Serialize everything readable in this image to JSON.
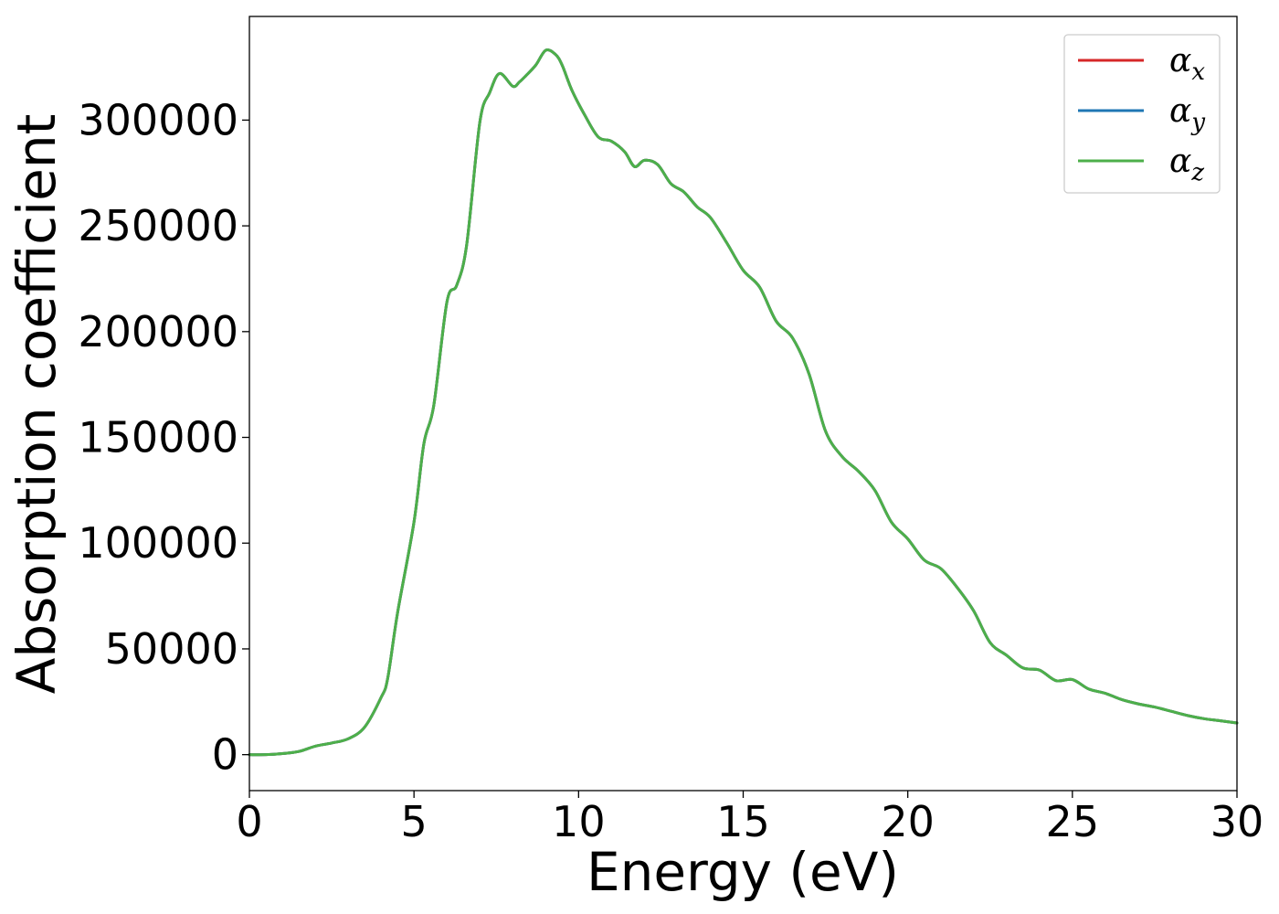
{
  "chart_data": {
    "type": "line",
    "xlabel": "Energy (eV)",
    "ylabel": "Absorption coefficient",
    "xlim": [
      0,
      30
    ],
    "ylim": [
      -17000,
      349000
    ],
    "xticks": [
      0,
      5,
      10,
      15,
      20,
      25,
      30
    ],
    "yticks": [
      0,
      50000,
      100000,
      150000,
      200000,
      250000,
      300000
    ],
    "grid": false,
    "legend_position": "top-right",
    "x": [
      0,
      0.5,
      1.0,
      1.5,
      2.0,
      2.5,
      3.0,
      3.5,
      4.0,
      4.2,
      4.5,
      5.0,
      5.3,
      5.6,
      6.0,
      6.3,
      6.6,
      7.0,
      7.3,
      7.6,
      8.0,
      8.2,
      8.4,
      8.7,
      9.0,
      9.3,
      9.5,
      9.8,
      10.2,
      10.6,
      11.0,
      11.4,
      11.7,
      12.0,
      12.4,
      12.8,
      13.2,
      13.6,
      14.0,
      14.5,
      15.0,
      15.5,
      16.0,
      16.5,
      17.0,
      17.5,
      18.0,
      18.5,
      19.0,
      19.5,
      20.0,
      20.5,
      21.0,
      21.5,
      22.0,
      22.5,
      23.0,
      23.5,
      24.0,
      24.5,
      25.0,
      25.5,
      26.0,
      26.5,
      27.0,
      27.5,
      28.0,
      28.5,
      29.0,
      29.5,
      30.0
    ],
    "series": [
      {
        "name": "α_x",
        "color": "#d62728",
        "values": [
          0,
          0,
          500,
          1500,
          4000,
          5500,
          7500,
          13000,
          27000,
          36000,
          67000,
          110000,
          147000,
          165000,
          214000,
          222000,
          241000,
          299000,
          313000,
          322000,
          316000,
          318000,
          321000,
          326000,
          333000,
          331000,
          326000,
          314000,
          302000,
          292000,
          290000,
          285000,
          278000,
          281000,
          279000,
          270000,
          266000,
          259000,
          254000,
          242000,
          229000,
          221000,
          205000,
          197000,
          180000,
          153000,
          141000,
          134000,
          125000,
          110000,
          102000,
          92000,
          88000,
          79000,
          68000,
          53000,
          47000,
          41000,
          40000,
          35000,
          35500,
          31000,
          29000,
          26000,
          24000,
          22500,
          20500,
          18500,
          17000,
          16000,
          15000
        ]
      },
      {
        "name": "α_y",
        "color": "#1f77b4",
        "values": [
          0,
          0,
          500,
          1500,
          4000,
          5500,
          7500,
          13000,
          27000,
          36000,
          67000,
          110000,
          147000,
          165000,
          214000,
          222000,
          241000,
          299000,
          313000,
          322000,
          316000,
          318000,
          321000,
          326000,
          333000,
          331000,
          326000,
          314000,
          302000,
          292000,
          290000,
          285000,
          278000,
          281000,
          279000,
          270000,
          266000,
          259000,
          254000,
          242000,
          229000,
          221000,
          205000,
          197000,
          180000,
          153000,
          141000,
          134000,
          125000,
          110000,
          102000,
          92000,
          88000,
          79000,
          68000,
          53000,
          47000,
          41000,
          40000,
          35000,
          35500,
          31000,
          29000,
          26000,
          24000,
          22500,
          20500,
          18500,
          17000,
          16000,
          15000
        ]
      },
      {
        "name": "α_z",
        "color": "#4daf4a",
        "values": [
          0,
          0,
          500,
          1500,
          4000,
          5500,
          7500,
          13000,
          27000,
          36000,
          67000,
          110000,
          147000,
          165000,
          214000,
          222000,
          241000,
          299000,
          313000,
          322000,
          316000,
          318000,
          321000,
          326000,
          333000,
          331000,
          326000,
          314000,
          302000,
          292000,
          290000,
          285000,
          278000,
          281000,
          279000,
          270000,
          266000,
          259000,
          254000,
          242000,
          229000,
          221000,
          205000,
          197000,
          180000,
          153000,
          141000,
          134000,
          125000,
          110000,
          102000,
          92000,
          88000,
          79000,
          68000,
          53000,
          47000,
          41000,
          40000,
          35000,
          35500,
          31000,
          29000,
          26000,
          24000,
          22500,
          20500,
          18500,
          17000,
          16000,
          15000
        ]
      }
    ],
    "legend": [
      {
        "symbol": "α",
        "sub": "x",
        "color": "#d62728"
      },
      {
        "symbol": "α",
        "sub": "y",
        "color": "#1f77b4"
      },
      {
        "symbol": "α",
        "sub": "z",
        "color": "#4daf4a"
      }
    ]
  }
}
